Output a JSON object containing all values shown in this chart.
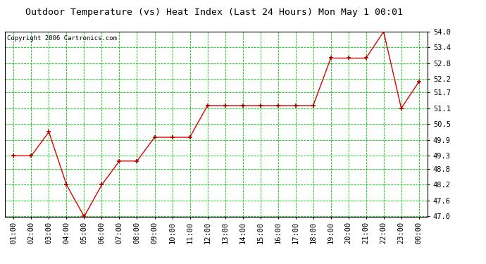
{
  "title": "Outdoor Temperature (vs) Heat Index (Last 24 Hours) Mon May 1 00:01",
  "copyright": "Copyright 2006 Cartronics.com",
  "x_labels": [
    "01:00",
    "02:00",
    "03:00",
    "04:00",
    "05:00",
    "06:00",
    "07:00",
    "08:00",
    "09:00",
    "10:00",
    "11:00",
    "12:00",
    "13:00",
    "14:00",
    "15:00",
    "16:00",
    "17:00",
    "18:00",
    "19:00",
    "20:00",
    "21:00",
    "22:00",
    "23:00",
    "00:00"
  ],
  "y_values": [
    49.3,
    49.3,
    50.2,
    48.2,
    47.0,
    48.2,
    49.1,
    49.1,
    50.0,
    50.0,
    50.0,
    51.2,
    51.2,
    51.2,
    51.2,
    51.2,
    51.2,
    51.2,
    53.0,
    53.0,
    53.0,
    54.0,
    51.1,
    52.1
  ],
  "ylim_min": 47.0,
  "ylim_max": 54.0,
  "y_ticks": [
    47.0,
    47.6,
    48.2,
    48.8,
    49.3,
    49.9,
    50.5,
    51.1,
    51.7,
    52.2,
    52.8,
    53.4,
    54.0
  ],
  "y_tick_labels": [
    "47.0",
    "47.6",
    "48.2",
    "48.8",
    "49.3",
    "49.9",
    "50.5",
    "51.1",
    "51.7",
    "52.2",
    "52.8",
    "53.4",
    "54.0"
  ],
  "line_color": "#dd0000",
  "marker_color": "#aa0000",
  "bg_color": "#ffffff",
  "plot_bg_color": "#ffffff",
  "grid_color": "#00cc00",
  "title_color": "#000000",
  "tick_label_color": "#000000",
  "title_fontsize": 9.5,
  "copyright_fontsize": 6.5,
  "tick_fontsize": 7.5,
  "figwidth": 6.9,
  "figheight": 3.75
}
